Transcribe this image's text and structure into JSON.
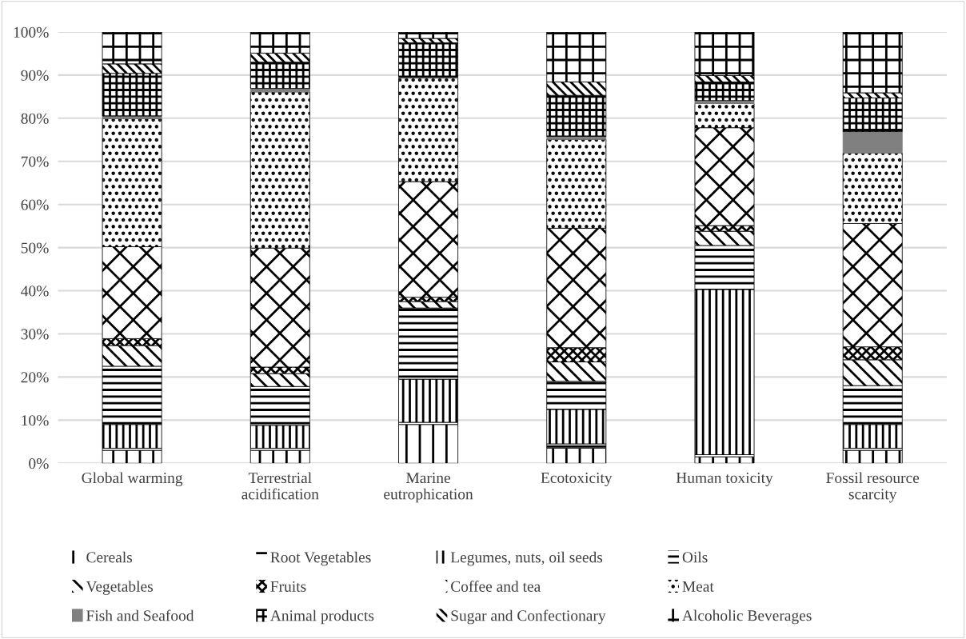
{
  "chart_data": {
    "type": "bar",
    "stacked": true,
    "categories": [
      "Global warming",
      "Terrestrial\nacidification",
      "Marine\neutrophication",
      "Ecotoxicity",
      "Human toxicity",
      "Fossil resource\nscarcity"
    ],
    "series": [
      {
        "name": "Cereals",
        "color": "#000000",
        "values": [
          3,
          3,
          9,
          3.5,
          1.5,
          3
        ]
      },
      {
        "name": "Root Vegetables",
        "color": "#000000",
        "values": [
          0.5,
          0.5,
          0.5,
          1,
          0.5,
          0.5
        ]
      },
      {
        "name": "Legumes, nuts, oil seeds",
        "color": "#000000",
        "values": [
          5.5,
          5.3,
          10,
          8,
          38.3,
          5.5
        ]
      },
      {
        "name": "Oils",
        "color": "#000000",
        "values": [
          13.5,
          9,
          16.5,
          6.5,
          10.2,
          9
        ]
      },
      {
        "name": "Vegetables",
        "color": "#000000",
        "values": [
          4.8,
          3,
          1.5,
          4.5,
          3.3,
          6
        ]
      },
      {
        "name": "Fruits",
        "color": "#000000",
        "values": [
          1.6,
          1.5,
          1,
          3.3,
          1.3,
          3
        ]
      },
      {
        "name": "Coffee and tea",
        "color": "#000000",
        "values": [
          21.3,
          27.6,
          26.8,
          27.7,
          22.7,
          28.6
        ]
      },
      {
        "name": "Meat",
        "color": "#000000",
        "values": [
          29.7,
          36.2,
          24,
          20.6,
          5.6,
          16.3
        ]
      },
      {
        "name": "Fish and Seafood",
        "color": "#808080",
        "values": [
          0.6,
          0.8,
          0.2,
          0.7,
          0.7,
          5
        ]
      },
      {
        "name": "Animal products",
        "color": "#000000",
        "values": [
          9.9,
          6.1,
          8,
          9.5,
          4.3,
          7.8
        ]
      },
      {
        "name": "Sugar and Confectionary",
        "color": "#000000",
        "values": [
          2.2,
          2.1,
          1,
          3.1,
          1.5,
          1.2
        ]
      },
      {
        "name": "Alcoholic Beverages",
        "color": "#000000",
        "values": [
          7.4,
          4.9,
          1.5,
          11.6,
          10.1,
          14.1
        ]
      }
    ],
    "ylim": [
      0,
      100
    ],
    "yticks": [
      {
        "value": 0,
        "label": "0%"
      },
      {
        "value": 10,
        "label": "10%"
      },
      {
        "value": 20,
        "label": "20%"
      },
      {
        "value": 30,
        "label": "30%"
      },
      {
        "value": 40,
        "label": "40%"
      },
      {
        "value": 50,
        "label": "50%"
      },
      {
        "value": 60,
        "label": "60%"
      },
      {
        "value": 70,
        "label": "70%"
      },
      {
        "value": 80,
        "label": "80%"
      },
      {
        "value": 90,
        "label": "90%"
      },
      {
        "value": 100,
        "label": "100%"
      }
    ],
    "grid": "y",
    "legend": "bottom"
  }
}
